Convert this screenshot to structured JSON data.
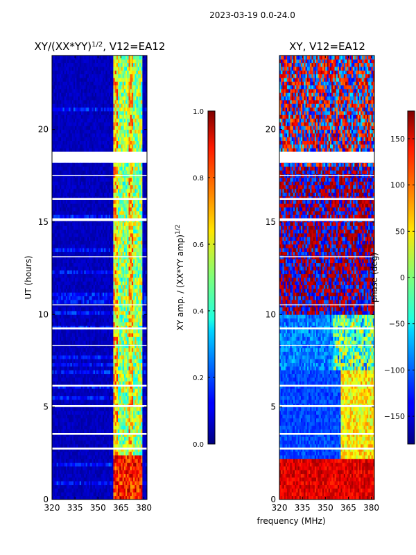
{
  "figure": {
    "suptitle": "2023-03-19 0.0-24.0",
    "shared_xlabel": "frequency (MHz)"
  },
  "chart_data": [
    {
      "type": "heatmap",
      "title_base": "XY/(XX*YY)",
      "title_exp": "1/2",
      "title_suffix": ", V12=EA12",
      "ylabel": "UT (hours)",
      "xlim": [
        320,
        382
      ],
      "ylim": [
        0,
        24
      ],
      "xticks": [
        320,
        335,
        350,
        365,
        380
      ],
      "yticks": [
        0,
        5,
        10,
        15,
        20
      ],
      "colormap": "jet",
      "colorbar": {
        "label_base": "XY amp. / (XX*YY amp)",
        "label_exp": "1/2",
        "range": [
          0.0,
          1.0
        ],
        "ticks": [
          "0.0",
          "0.2",
          "0.4",
          "0.6",
          "0.8",
          "1.0"
        ]
      },
      "data_gaps_hours": [
        [
          18.2,
          18.8
        ],
        [
          15.05,
          15.2
        ],
        [
          3.5,
          3.6
        ],
        [
          5.0,
          5.1
        ],
        [
          9.2,
          9.3
        ],
        [
          6.1,
          6.2
        ],
        [
          2.7,
          2.8
        ],
        [
          8.3,
          8.35
        ],
        [
          10.5,
          10.55
        ],
        [
          13.1,
          13.15
        ],
        [
          16.2,
          16.3
        ],
        [
          17.5,
          17.55
        ]
      ],
      "high_coherence_band_mhz": [
        360,
        379
      ]
    },
    {
      "type": "heatmap",
      "title": "XY, V12=EA12",
      "xlim": [
        320,
        382
      ],
      "ylim": [
        0,
        24
      ],
      "xticks": [
        320,
        335,
        350,
        365,
        380
      ],
      "yticks": [
        0,
        5,
        10,
        15,
        20
      ],
      "colormap": "jet",
      "colorbar": {
        "label": "phase (deg)",
        "range": [
          -180,
          180
        ],
        "ticks": [
          "−150",
          "−100",
          "−50",
          "0",
          "50",
          "100",
          "150"
        ]
      },
      "data_gaps_hours": [
        [
          18.2,
          18.8
        ],
        [
          15.05,
          15.2
        ],
        [
          3.5,
          3.6
        ],
        [
          5.0,
          5.1
        ],
        [
          9.2,
          9.3
        ],
        [
          6.1,
          6.2
        ],
        [
          2.7,
          2.8
        ],
        [
          8.3,
          8.35
        ],
        [
          10.5,
          10.55
        ],
        [
          13.1,
          13.15
        ],
        [
          16.2,
          16.3
        ],
        [
          17.5,
          17.55
        ]
      ]
    }
  ]
}
